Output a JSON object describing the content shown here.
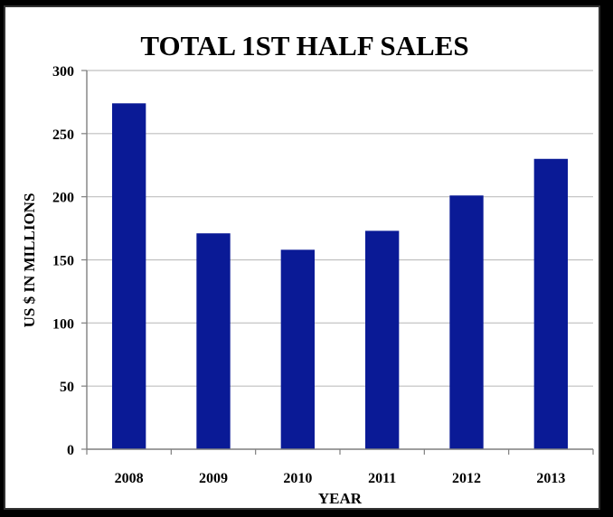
{
  "chart_data": {
    "type": "bar",
    "title": "TOTAL 1ST HALF SALES",
    "xlabel": "YEAR",
    "ylabel": "US $ IN MILLIONS",
    "categories": [
      "2008",
      "2009",
      "2010",
      "2011",
      "2012",
      "2013"
    ],
    "values": [
      274,
      171,
      158,
      173,
      201,
      230
    ],
    "ylim": [
      0,
      300
    ],
    "yticks": [
      0,
      50,
      100,
      150,
      200,
      250,
      300
    ],
    "grid": true,
    "legend": "none",
    "bar_color": "#0A1A96",
    "grid_color": "#BFBFBF",
    "axis_color": "#7F7F7F"
  }
}
